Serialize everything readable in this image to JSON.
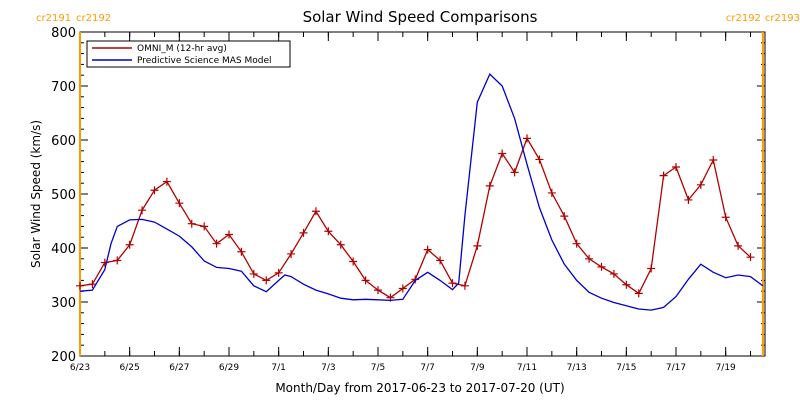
{
  "chart_data": {
    "type": "line",
    "title": "Solar Wind Speed Comparisons",
    "xlabel": "Month/Day from 2017-06-23 to 2017-07-20 (UT)",
    "ylabel": "Solar Wind Speed (km/s)",
    "xlim": [
      "2017-06-23",
      "2017-07-20T14:00"
    ],
    "ylim": [
      200,
      800
    ],
    "y_ticks": [
      200,
      300,
      400,
      500,
      600,
      700,
      800
    ],
    "x_ticks": [
      {
        "date": "2017-06-23",
        "label": "6/23"
      },
      {
        "date": "2017-06-25",
        "label": "6/25"
      },
      {
        "date": "2017-06-27",
        "label": "6/27"
      },
      {
        "date": "2017-06-29",
        "label": "6/29"
      },
      {
        "date": "2017-07-01",
        "label": "7/1"
      },
      {
        "date": "2017-07-03",
        "label": "7/3"
      },
      {
        "date": "2017-07-05",
        "label": "7/5"
      },
      {
        "date": "2017-07-07",
        "label": "7/7"
      },
      {
        "date": "2017-07-09",
        "label": "7/9"
      },
      {
        "date": "2017-07-11",
        "label": "7/11"
      },
      {
        "date": "2017-07-13",
        "label": "7/13"
      },
      {
        "date": "2017-07-15",
        "label": "7/15"
      },
      {
        "date": "2017-07-17",
        "label": "7/17"
      },
      {
        "date": "2017-07-19",
        "label": "7/19"
      }
    ],
    "grid": false,
    "legend_position": "top-left",
    "carrington_labels": [
      {
        "date": "2017-06-23",
        "left": "cr2191",
        "right": "cr2192"
      },
      {
        "date": "2017-07-20T12:00",
        "left": "cr2192",
        "right": "cr2193"
      }
    ],
    "carrington_color": "#ff9900",
    "series": [
      {
        "name": "OMNI_M (12-hr avg)",
        "color": "#b30000",
        "marker": "plus",
        "points": [
          [
            "2017-06-23T00:00",
            330
          ],
          [
            "2017-06-23T12:00",
            333
          ],
          [
            "2017-06-24T00:00",
            373
          ],
          [
            "2017-06-24T12:00",
            377
          ],
          [
            "2017-06-25T00:00",
            406
          ],
          [
            "2017-06-25T12:00",
            470
          ],
          [
            "2017-06-26T00:00",
            507
          ],
          [
            "2017-06-26T12:00",
            523
          ],
          [
            "2017-06-27T00:00",
            483
          ],
          [
            "2017-06-27T12:00",
            445
          ],
          [
            "2017-06-28T00:00",
            440
          ],
          [
            "2017-06-28T12:00",
            408
          ],
          [
            "2017-06-29T00:00",
            425
          ],
          [
            "2017-06-29T12:00",
            393
          ],
          [
            "2017-06-30T00:00",
            352
          ],
          [
            "2017-06-30T12:00",
            340
          ],
          [
            "2017-07-01T00:00",
            354
          ],
          [
            "2017-07-01T12:00",
            389
          ],
          [
            "2017-07-02T00:00",
            428
          ],
          [
            "2017-07-02T12:00",
            468
          ],
          [
            "2017-07-03T00:00",
            431
          ],
          [
            "2017-07-03T12:00",
            406
          ],
          [
            "2017-07-04T00:00",
            375
          ],
          [
            "2017-07-04T12:00",
            340
          ],
          [
            "2017-07-05T00:00",
            322
          ],
          [
            "2017-07-05T12:00",
            308
          ],
          [
            "2017-07-06T00:00",
            325
          ],
          [
            "2017-07-06T12:00",
            342
          ],
          [
            "2017-07-07T00:00",
            397
          ],
          [
            "2017-07-07T12:00",
            377
          ],
          [
            "2017-07-08T00:00",
            335
          ],
          [
            "2017-07-08T12:00",
            330
          ],
          [
            "2017-07-09T00:00",
            404
          ],
          [
            "2017-07-09T12:00",
            515
          ],
          [
            "2017-07-10T00:00",
            575
          ],
          [
            "2017-07-10T12:00",
            540
          ],
          [
            "2017-07-11T00:00",
            603
          ],
          [
            "2017-07-11T12:00",
            564
          ],
          [
            "2017-07-12T00:00",
            502
          ],
          [
            "2017-07-12T12:00",
            459
          ],
          [
            "2017-07-13T00:00",
            408
          ],
          [
            "2017-07-13T12:00",
            380
          ],
          [
            "2017-07-14T00:00",
            365
          ],
          [
            "2017-07-14T12:00",
            352
          ],
          [
            "2017-07-15T00:00",
            332
          ],
          [
            "2017-07-15T12:00",
            316
          ],
          [
            "2017-07-16T00:00",
            362
          ],
          [
            "2017-07-16T12:00",
            534
          ],
          [
            "2017-07-17T00:00",
            550
          ],
          [
            "2017-07-17T12:00",
            489
          ],
          [
            "2017-07-18T00:00",
            517
          ],
          [
            "2017-07-18T12:00",
            563
          ],
          [
            "2017-07-19T00:00",
            457
          ],
          [
            "2017-07-19T12:00",
            404
          ],
          [
            "2017-07-20T00:00",
            383
          ]
        ]
      },
      {
        "name": "Predictive Science MAS Model",
        "color": "#0000cc",
        "marker": "none",
        "points": [
          [
            "2017-06-23T00:00",
            320
          ],
          [
            "2017-06-23T12:00",
            322
          ],
          [
            "2017-06-24T00:00",
            360
          ],
          [
            "2017-06-24T06:00",
            408
          ],
          [
            "2017-06-24T12:00",
            440
          ],
          [
            "2017-06-25T00:00",
            452
          ],
          [
            "2017-06-25T12:00",
            453
          ],
          [
            "2017-06-26T00:00",
            448
          ],
          [
            "2017-06-26T12:00",
            435
          ],
          [
            "2017-06-27T00:00",
            422
          ],
          [
            "2017-06-27T12:00",
            402
          ],
          [
            "2017-06-28T00:00",
            376
          ],
          [
            "2017-06-28T12:00",
            364
          ],
          [
            "2017-06-29T00:00",
            362
          ],
          [
            "2017-06-29T12:00",
            357
          ],
          [
            "2017-06-30T00:00",
            330
          ],
          [
            "2017-06-30T12:00",
            319
          ],
          [
            "2017-07-01T00:00",
            340
          ],
          [
            "2017-07-01T06:00",
            350
          ],
          [
            "2017-07-01T12:00",
            347
          ],
          [
            "2017-07-02T00:00",
            333
          ],
          [
            "2017-07-02T12:00",
            322
          ],
          [
            "2017-07-03T00:00",
            315
          ],
          [
            "2017-07-03T12:00",
            307
          ],
          [
            "2017-07-04T00:00",
            304
          ],
          [
            "2017-07-04T12:00",
            305
          ],
          [
            "2017-07-05T00:00",
            304
          ],
          [
            "2017-07-05T12:00",
            303
          ],
          [
            "2017-07-06T00:00",
            305
          ],
          [
            "2017-07-06T12:00",
            340
          ],
          [
            "2017-07-07T00:00",
            355
          ],
          [
            "2017-07-07T12:00",
            340
          ],
          [
            "2017-07-08T00:00",
            323
          ],
          [
            "2017-07-08T06:00",
            335
          ],
          [
            "2017-07-08T12:00",
            460
          ],
          [
            "2017-07-09T00:00",
            670
          ],
          [
            "2017-07-09T12:00",
            722
          ],
          [
            "2017-07-10T00:00",
            700
          ],
          [
            "2017-07-10T12:00",
            640
          ],
          [
            "2017-07-11T00:00",
            555
          ],
          [
            "2017-07-11T12:00",
            475
          ],
          [
            "2017-07-12T00:00",
            415
          ],
          [
            "2017-07-12T12:00",
            370
          ],
          [
            "2017-07-13T00:00",
            340
          ],
          [
            "2017-07-13T12:00",
            318
          ],
          [
            "2017-07-14T00:00",
            307
          ],
          [
            "2017-07-14T12:00",
            299
          ],
          [
            "2017-07-15T00:00",
            293
          ],
          [
            "2017-07-15T12:00",
            287
          ],
          [
            "2017-07-16T00:00",
            285
          ],
          [
            "2017-07-16T12:00",
            290
          ],
          [
            "2017-07-17T00:00",
            310
          ],
          [
            "2017-07-17T12:00",
            342
          ],
          [
            "2017-07-18T00:00",
            370
          ],
          [
            "2017-07-18T12:00",
            355
          ],
          [
            "2017-07-19T00:00",
            345
          ],
          [
            "2017-07-19T12:00",
            350
          ],
          [
            "2017-07-20T00:00",
            347
          ],
          [
            "2017-07-20T12:00",
            330
          ]
        ]
      }
    ]
  }
}
